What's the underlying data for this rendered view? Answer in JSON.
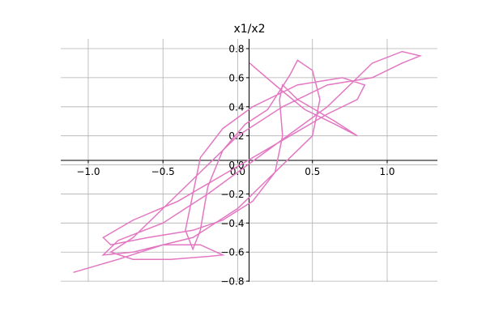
{
  "chart_data": {
    "type": "line",
    "title": "x1/x2",
    "x": [
      0.08,
      0.25,
      0.45,
      0.65,
      0.8,
      0.65,
      0.4,
      0.3,
      0.28,
      0.3,
      0.25,
      0.1,
      -0.1,
      -0.3,
      -0.6,
      -0.85,
      -0.9,
      -0.7,
      -0.4,
      -0.15,
      0.1,
      0.35,
      0.6,
      0.8,
      0.85,
      0.7,
      0.4,
      0.1,
      -0.1,
      -0.25,
      -0.3,
      -0.35,
      -0.3,
      -0.25,
      -0.2,
      -0.1,
      0.05,
      0.2,
      0.35,
      0.4,
      0.5,
      0.55,
      0.5,
      0.35,
      0.2,
      0,
      -0.3,
      -0.7,
      -0.9,
      -0.8,
      -0.5,
      -0.2,
      0.2,
      0.6,
      0.9,
      1.1,
      1.22,
      1.1,
      0.9,
      0.6,
      0.3,
      0,
      -0.3,
      -0.5,
      -0.7,
      -0.85,
      -0.7,
      -0.45,
      -0.2,
      -0.1,
      -0.25,
      -0.5,
      -0.8,
      -1.1
    ],
    "series": [
      {
        "color": "#e377c2",
        "values": [
          0.7,
          0.55,
          0.38,
          0.28,
          0.2,
          0.3,
          0.45,
          0.55,
          0.45,
          0.2,
          -0.05,
          -0.25,
          -0.38,
          -0.45,
          -0.5,
          -0.55,
          -0.5,
          -0.38,
          -0.25,
          -0.1,
          0.05,
          0.2,
          0.35,
          0.45,
          0.55,
          0.6,
          0.55,
          0.4,
          0.25,
          0.05,
          -0.2,
          -0.45,
          -0.58,
          -0.45,
          -0.15,
          0.1,
          0.28,
          0.38,
          0.62,
          0.72,
          0.65,
          0.45,
          0.2,
          0.05,
          -0.1,
          -0.3,
          -0.5,
          -0.6,
          -0.62,
          -0.52,
          -0.4,
          -0.2,
          0.1,
          0.4,
          0.7,
          0.78,
          0.75,
          0.7,
          0.6,
          0.55,
          0.4,
          0.2,
          -0.1,
          -0.3,
          -0.5,
          -0.6,
          -0.65,
          -0.65,
          -0.63,
          -0.62,
          -0.55,
          -0.55,
          -0.65,
          -0.74
        ]
      }
    ],
    "xlim": [
      -1.184,
      1.336
    ],
    "ylim": [
      -0.805,
      0.867
    ],
    "xticks": [
      {
        "value": -1.0,
        "label": "−1.0"
      },
      {
        "value": -0.5,
        "label": "−0.5"
      },
      {
        "value": 0.0,
        "label": "0.0"
      },
      0.5,
      {
        "value": 1.0,
        "label": "1.0"
      }
    ],
    "yticks": [
      {
        "value": -0.8,
        "label": "−0.8"
      },
      {
        "value": -0.6,
        "label": "−0.6"
      },
      {
        "value": -0.4,
        "label": "−0.4"
      },
      {
        "value": -0.2,
        "label": "−0.2"
      },
      {
        "value": 0.0,
        "label": "0.0"
      },
      0.2,
      0.4,
      0.6,
      0.8
    ],
    "grid": true
  }
}
